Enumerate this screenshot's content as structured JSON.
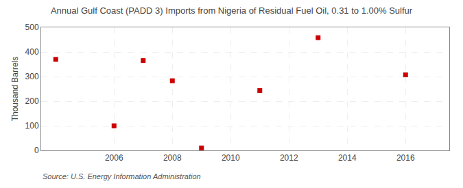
{
  "chart_data": {
    "type": "scatter",
    "title": "Annual Gulf Coast (PADD 3) Imports from Nigeria of Residual Fuel Oil, 0.31 to 1.00% Sulfur",
    "ylabel": "Thousand Barrels",
    "annotations": [
      "Source: U.S. Energy Information Administration"
    ],
    "x": [
      2004,
      2006,
      2007,
      2008,
      2009,
      2011,
      2013,
      2016
    ],
    "values": [
      370,
      100,
      365,
      283,
      10,
      243,
      458,
      307
    ],
    "color": "#cc0000",
    "marker": "square",
    "xlim": [
      2003.5,
      2017.5
    ],
    "xticks": [
      2006,
      2008,
      2010,
      2012,
      2014,
      2016
    ],
    "ylim": [
      0,
      500
    ],
    "yticks": [
      0,
      100,
      200,
      300,
      400,
      500
    ],
    "grid": true
  }
}
